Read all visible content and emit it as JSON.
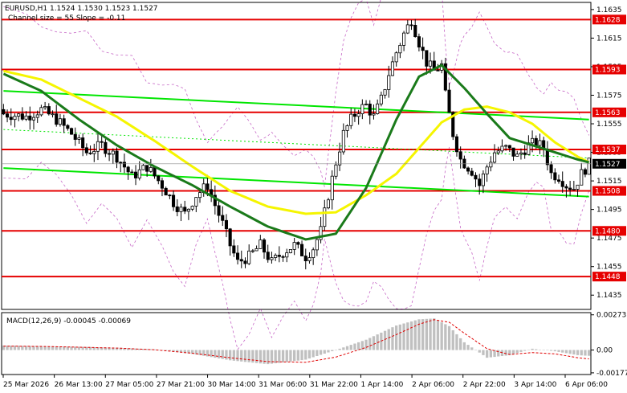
{
  "header": {
    "symbol_line": "EURUSD,H1  1.1524 1.1530 1.1523 1.1527",
    "channel_line": "Channel size = 55 Slope = -0.11"
  },
  "colors": {
    "background": "#ffffff",
    "candle": "#000000",
    "ma_fast": "#1a7a1a",
    "ma_slow": "#f5f500",
    "channel": "#00e600",
    "level": "#e60000",
    "envelope": "#a000a0",
    "macd_hist": "#c0c0c0",
    "macd_signal": "#e00000"
  },
  "chart_data": [
    {
      "type": "candlestick",
      "name": "price",
      "ylim": [
        1.1425,
        1.164
      ],
      "y_ticks": [
        "1.1635",
        "1.1615",
        "1.1595",
        "1.1575",
        "1.1555",
        "1.1535",
        "1.1515",
        "1.1495",
        "1.1475",
        "1.1455",
        "1.1435"
      ],
      "x_ticks": [
        "25 Mar 2026",
        "26 Mar 13:00",
        "27 Mar 05:00",
        "27 Mar 21:00",
        "30 Mar 14:00",
        "31 Mar 06:00",
        "31 Mar 22:00",
        "1 Apr 14:00",
        "2 Apr 06:00",
        "2 Apr 22:00",
        "3 Apr 14:00",
        "6 Apr 06:00"
      ],
      "levels": [
        {
          "value": 1.1628,
          "label": "1.1628"
        },
        {
          "value": 1.1593,
          "label": "1.1593"
        },
        {
          "value": 1.1563,
          "label": "1.1563"
        },
        {
          "value": 1.1537,
          "label": "1.1537"
        },
        {
          "value": 1.1508,
          "label": "1.1508"
        },
        {
          "value": 1.148,
          "label": "1.1480"
        },
        {
          "value": 1.1448,
          "label": "1.1448"
        }
      ],
      "current_price": {
        "value": 1.1527,
        "label": "1.1527"
      },
      "close_path": [
        [
          0,
          1.1562
        ],
        [
          6,
          1.156
        ],
        [
          10,
          1.1565
        ],
        [
          14,
          1.1558
        ],
        [
          18,
          1.1548
        ],
        [
          22,
          1.1535
        ],
        [
          26,
          1.154
        ],
        [
          30,
          1.1532
        ],
        [
          34,
          1.1518
        ],
        [
          38,
          1.1525
        ],
        [
          42,
          1.1512
        ],
        [
          45,
          1.15
        ],
        [
          48,
          1.1492
        ],
        [
          51,
          1.1505
        ],
        [
          54,
          1.1512
        ],
        [
          56,
          1.1498
        ],
        [
          58,
          1.1485
        ],
        [
          60,
          1.147
        ],
        [
          62,
          1.1458
        ],
        [
          65,
          1.1462
        ],
        [
          68,
          1.147
        ],
        [
          71,
          1.1458
        ],
        [
          74,
          1.1465
        ],
        [
          77,
          1.147
        ],
        [
          80,
          1.1462
        ],
        [
          82,
          1.1468
        ],
        [
          84,
          1.148
        ],
        [
          86,
          1.1505
        ],
        [
          88,
          1.1528
        ],
        [
          90,
          1.1548
        ],
        [
          92,
          1.1558
        ],
        [
          94,
          1.1565
        ],
        [
          96,
          1.1568
        ],
        [
          98,
          1.156
        ],
        [
          100,
          1.1572
        ],
        [
          102,
          1.159
        ],
        [
          104,
          1.1605
        ],
        [
          106,
          1.1618
        ],
        [
          108,
          1.1628
        ],
        [
          110,
          1.1612
        ],
        [
          112,
          1.1598
        ],
        [
          114,
          1.1592
        ],
        [
          116,
          1.1596
        ],
        [
          117,
          1.1575
        ],
        [
          119,
          1.1548
        ],
        [
          121,
          1.153
        ],
        [
          124,
          1.1522
        ],
        [
          126,
          1.1512
        ],
        [
          128,
          1.1525
        ],
        [
          130,
          1.1535
        ],
        [
          133,
          1.1538
        ],
        [
          136,
          1.1532
        ],
        [
          139,
          1.154
        ],
        [
          141,
          1.1542
        ],
        [
          143,
          1.1538
        ],
        [
          145,
          1.152
        ],
        [
          147,
          1.1518
        ],
        [
          149,
          1.1512
        ],
        [
          151,
          1.151
        ],
        [
          153,
          1.152
        ],
        [
          155,
          1.1527
        ]
      ],
      "ma_fast_path": [
        [
          0,
          1.159
        ],
        [
          10,
          1.1578
        ],
        [
          20,
          1.1558
        ],
        [
          30,
          1.154
        ],
        [
          40,
          1.1525
        ],
        [
          50,
          1.1512
        ],
        [
          60,
          1.1497
        ],
        [
          70,
          1.1483
        ],
        [
          80,
          1.1474
        ],
        [
          88,
          1.1478
        ],
        [
          96,
          1.151
        ],
        [
          104,
          1.1558
        ],
        [
          110,
          1.1588
        ],
        [
          116,
          1.1596
        ],
        [
          122,
          1.158
        ],
        [
          128,
          1.1562
        ],
        [
          134,
          1.1545
        ],
        [
          140,
          1.154
        ],
        [
          146,
          1.1535
        ],
        [
          152,
          1.153
        ],
        [
          155,
          1.1528
        ]
      ],
      "ma_slow_path": [
        [
          0,
          1.1592
        ],
        [
          10,
          1.1586
        ],
        [
          20,
          1.1573
        ],
        [
          30,
          1.156
        ],
        [
          40,
          1.1543
        ],
        [
          50,
          1.1525
        ],
        [
          60,
          1.1508
        ],
        [
          70,
          1.1497
        ],
        [
          80,
          1.1492
        ],
        [
          88,
          1.1493
        ],
        [
          96,
          1.1505
        ],
        [
          104,
          1.152
        ],
        [
          110,
          1.1538
        ],
        [
          116,
          1.1556
        ],
        [
          122,
          1.1565
        ],
        [
          128,
          1.1567
        ],
        [
          134,
          1.1563
        ],
        [
          140,
          1.1555
        ],
        [
          146,
          1.1542
        ],
        [
          152,
          1.1532
        ],
        [
          155,
          1.1528
        ]
      ],
      "channel_upper": [
        [
          0,
          1.1578
        ],
        [
          155,
          1.1558
        ]
      ],
      "channel_lower": [
        [
          0,
          1.1524
        ],
        [
          155,
          1.1504
        ]
      ]
    },
    {
      "type": "histogram",
      "name": "MACD",
      "label": "MACD(12,26,9) -0.00045 -0.00069",
      "ylim": [
        -0.0019,
        0.0029
      ],
      "y_ticks": [
        "0.00273",
        "0.00",
        "-0.00177"
      ],
      "hist_path": [
        [
          0,
          0.00035
        ],
        [
          10,
          0.0003
        ],
        [
          20,
          0.00025
        ],
        [
          30,
          0.00018
        ],
        [
          40,
          5e-05
        ],
        [
          50,
          -0.0003
        ],
        [
          60,
          -0.0008
        ],
        [
          70,
          -0.0011
        ],
        [
          80,
          -0.00075
        ],
        [
          88,
          0.0
        ],
        [
          96,
          0.0008
        ],
        [
          104,
          0.0019
        ],
        [
          110,
          0.00238
        ],
        [
          114,
          0.00245
        ],
        [
          118,
          0.00185
        ],
        [
          122,
          0.0006
        ],
        [
          128,
          -0.0006
        ],
        [
          134,
          -0.0004
        ],
        [
          140,
          0.0001
        ],
        [
          146,
          -0.0001
        ],
        [
          152,
          -0.0004
        ],
        [
          155,
          -0.00045
        ]
      ],
      "signal_path": [
        [
          0,
          0.0003
        ],
        [
          10,
          0.00028
        ],
        [
          20,
          0.00022
        ],
        [
          30,
          0.00015
        ],
        [
          40,
          2e-05
        ],
        [
          50,
          -0.00025
        ],
        [
          60,
          -0.0006
        ],
        [
          70,
          -0.0009
        ],
        [
          80,
          -0.00095
        ],
        [
          88,
          -0.00055
        ],
        [
          96,
          0.0002
        ],
        [
          104,
          0.0012
        ],
        [
          110,
          0.002
        ],
        [
          114,
          0.00235
        ],
        [
          118,
          0.00215
        ],
        [
          122,
          0.0013
        ],
        [
          128,
          0.0001
        ],
        [
          134,
          -0.00035
        ],
        [
          140,
          -0.0002
        ],
        [
          146,
          -0.0003
        ],
        [
          152,
          -0.0006
        ],
        [
          155,
          -0.00069
        ]
      ]
    }
  ]
}
